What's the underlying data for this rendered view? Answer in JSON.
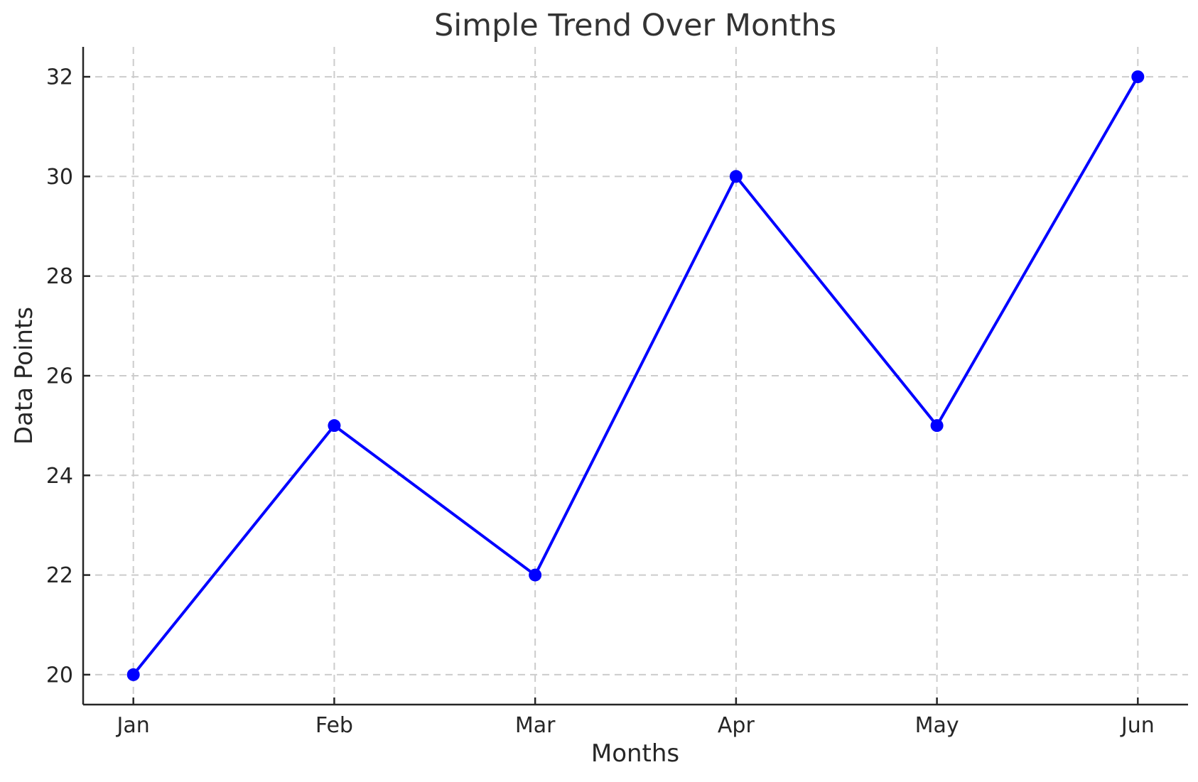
{
  "chart_data": {
    "type": "line",
    "title": "Simple Trend Over Months",
    "xlabel": "Months",
    "ylabel": "Data Points",
    "categories": [
      "Jan",
      "Feb",
      "Mar",
      "Apr",
      "May",
      "Jun"
    ],
    "series": [
      {
        "name": "Data Points",
        "values": [
          20,
          25,
          22,
          30,
          25,
          32
        ]
      }
    ],
    "y_ticks": [
      20,
      22,
      24,
      26,
      28,
      30,
      32
    ],
    "xlim": [
      -0.25,
      5.25
    ],
    "ylim": [
      19.4,
      32.6
    ],
    "grid": true,
    "grid_style": "dashed",
    "legend_position": "none",
    "line_color": "#0000ff",
    "marker_shape": "circle",
    "grid_color": "#cccccc",
    "spine_color": "#262626",
    "text_color": "#262626",
    "background_color": "#ffffff"
  }
}
